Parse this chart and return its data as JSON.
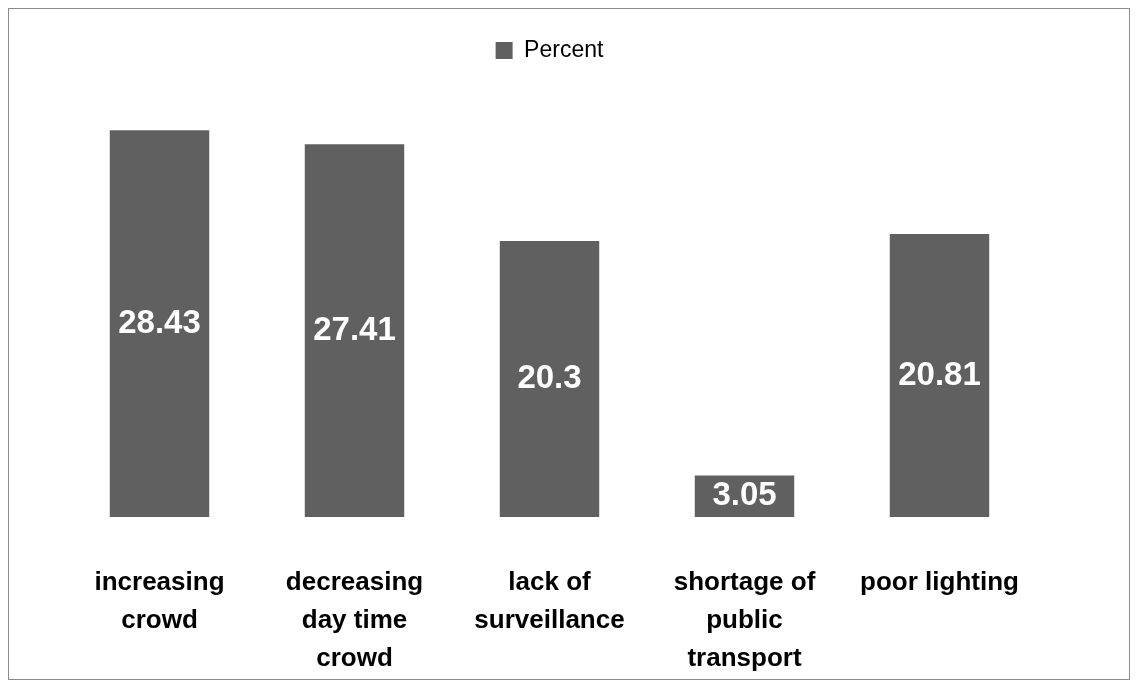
{
  "chart_data": {
    "type": "bar",
    "categories": [
      "increasing crowd",
      "decreasing day time crowd",
      "lack of surveillance",
      "shortage of public transport",
      "poor lighting"
    ],
    "series": [
      {
        "name": "Percent",
        "color": "#606060",
        "values": [
          28.43,
          27.41,
          20.3,
          3.05,
          20.81
        ]
      }
    ],
    "data_labels": true,
    "legend": "top"
  }
}
